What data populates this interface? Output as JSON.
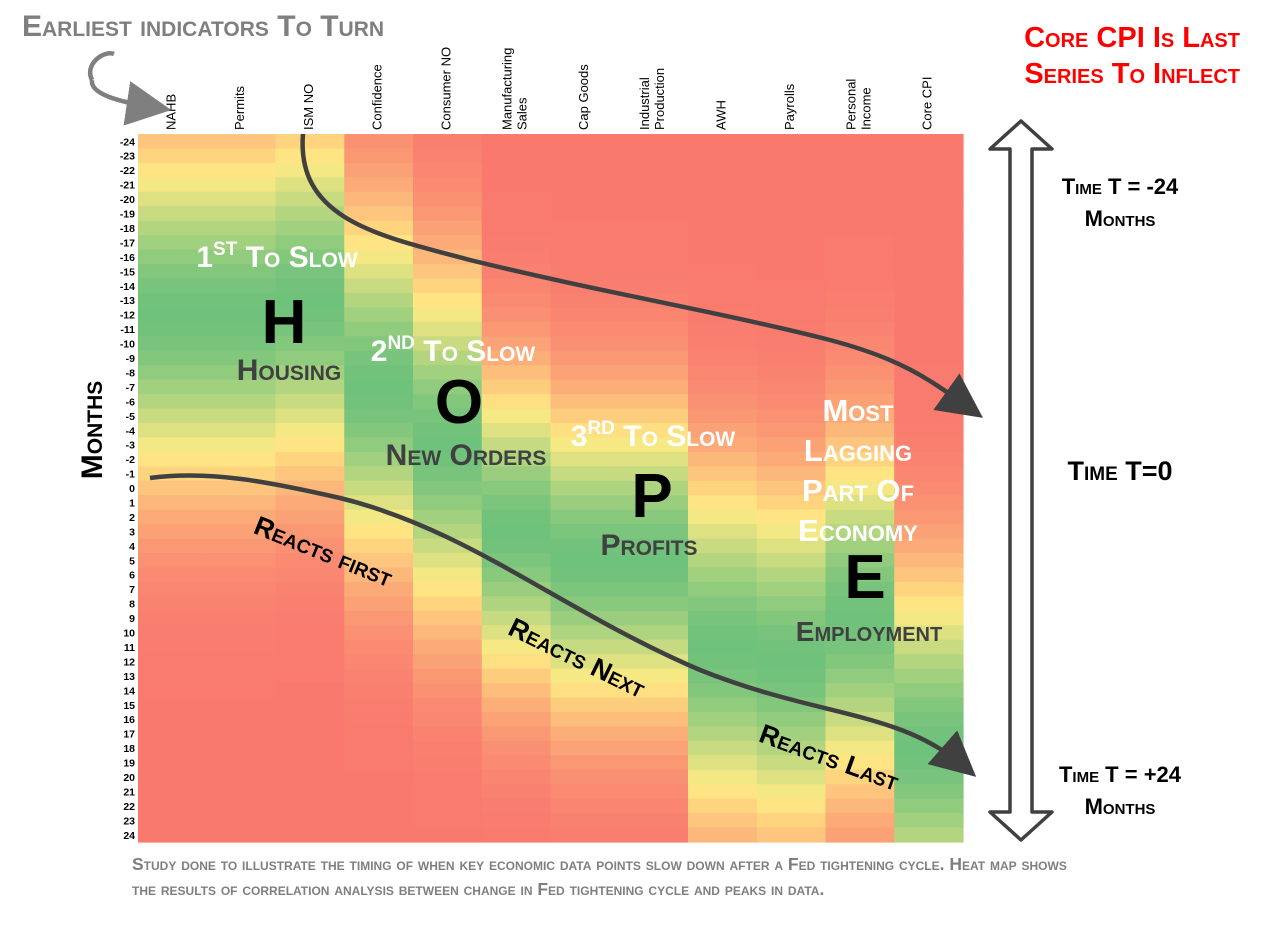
{
  "header": {
    "earliest_label": "Earliest indicators To Turn",
    "core_cpi_line1": "Core CPI Is Last",
    "core_cpi_line2": "Series To Inflect"
  },
  "time_axis": {
    "top_line1": "Time T = -24",
    "top_line2": "Months",
    "mid": "Time T=0",
    "bottom_line1": "Time T = +24",
    "bottom_line2": "Months"
  },
  "caption": "Study done to illustrate the timing of when key economic data points slow down after a Fed tightening cycle. Heat map shows the results of correlation analysis between change in Fed tightening cycle and peaks in data.",
  "chart_data": {
    "type": "heatmap",
    "ylabel": "Months",
    "columns": [
      {
        "lines": [
          "NAHB"
        ]
      },
      {
        "lines": [
          "Permits"
        ]
      },
      {
        "lines": [
          "ISM NO"
        ]
      },
      {
        "lines": [
          "Confidence"
        ]
      },
      {
        "lines": [
          "Consumer NO"
        ]
      },
      {
        "lines": [
          "Manufacturing",
          "Sales"
        ]
      },
      {
        "lines": [
          "Cap Goods"
        ]
      },
      {
        "lines": [
          "Industrial",
          "Production"
        ]
      },
      {
        "lines": [
          "AWH"
        ]
      },
      {
        "lines": [
          "Payrolls"
        ]
      },
      {
        "lines": [
          "Personal",
          "Income"
        ]
      },
      {
        "lines": [
          "Core CPI"
        ]
      }
    ],
    "rows": [
      "-24",
      "-23",
      "-22",
      "-21",
      "-20",
      "-19",
      "-18",
      "-17",
      "-16",
      "-15",
      "-14",
      "-13",
      "-12",
      "-11",
      "-10",
      "-9",
      "-8",
      "-7",
      "-6",
      "-5",
      "-4",
      "-3",
      "-2",
      "-1",
      "0",
      "1",
      "2",
      "3",
      "4",
      "5",
      "6",
      "7",
      "8",
      "9",
      "10",
      "11",
      "12",
      "13",
      "14",
      "15",
      "16",
      "17",
      "18",
      "19",
      "20",
      "21",
      "22",
      "23",
      "24"
    ],
    "row_range": [
      -24,
      24
    ],
    "color_scale": {
      "low": "#f8696b",
      "mid": "#ffeb84",
      "high": "#63be7b"
    },
    "peak_month": [
      -12,
      -12,
      -13,
      -7,
      -3,
      3,
      5,
      5,
      11,
      12,
      9,
      18
    ],
    "spread_months": [
      8,
      8,
      8,
      8,
      8,
      7,
      7,
      7,
      8,
      8,
      8,
      8
    ],
    "annotations": {
      "h": {
        "heading_main": "1",
        "heading_sup": "ST",
        "heading_rest": " To Slow",
        "letter": "H",
        "sub": "Housing"
      },
      "o": {
        "heading_main": "2",
        "heading_sup": "ND",
        "heading_rest": " To Slow",
        "letter": "O",
        "sub": "New Orders"
      },
      "p": {
        "heading_main": "3",
        "heading_sup": "RD",
        "heading_rest": " To Slow",
        "letter": "P",
        "sub": "Profits"
      },
      "e": {
        "lines": [
          "Most",
          "Lagging",
          "Part Of",
          "Economy"
        ],
        "letter": "E",
        "sub": "Employment"
      },
      "reacts_first": "Reacts first",
      "reacts_next": "Reacts Next",
      "reacts_last": "Reacts Last"
    }
  }
}
